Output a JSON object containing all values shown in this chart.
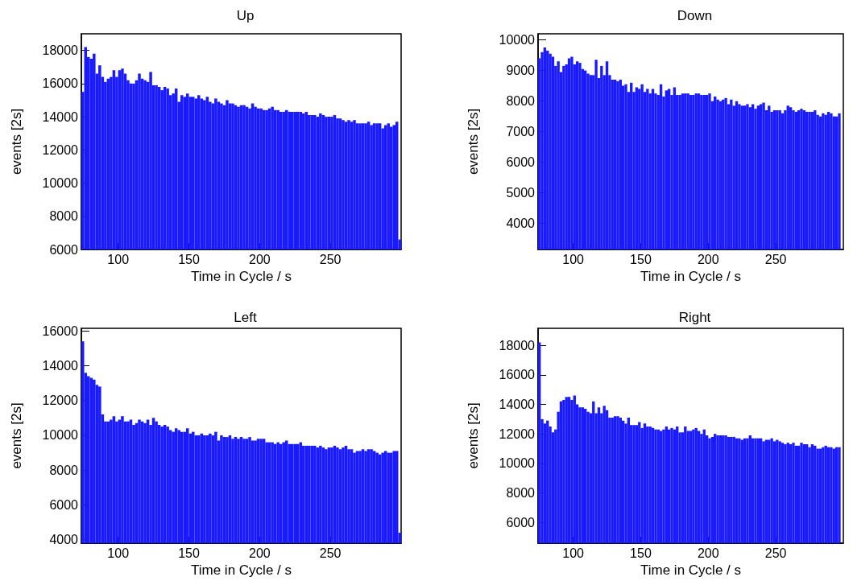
{
  "chart_data": [
    {
      "type": "histogram",
      "title": "Up",
      "xlabel": "Time in Cycle / s",
      "ylabel": "events [2s]",
      "color": "#1a1aff",
      "xlim": [
        74,
        300
      ],
      "xticks": [
        100,
        150,
        200,
        250
      ],
      "ylim": [
        6000,
        19000
      ],
      "yticks": [
        6000,
        8000,
        10000,
        12000,
        14000,
        16000,
        18000
      ],
      "bins": [
        74,
        76,
        78,
        80,
        82,
        84,
        86,
        88,
        90,
        92,
        94,
        96,
        98,
        100,
        102,
        104,
        106,
        108,
        110,
        112,
        114,
        116,
        118,
        120,
        122,
        124,
        126,
        128,
        130,
        132,
        134,
        136,
        138,
        140,
        142,
        144,
        146,
        148,
        150,
        152,
        154,
        156,
        158,
        160,
        162,
        164,
        166,
        168,
        170,
        172,
        174,
        176,
        178,
        180,
        182,
        184,
        186,
        188,
        190,
        192,
        194,
        196,
        198,
        200,
        202,
        204,
        206,
        208,
        210,
        212,
        214,
        216,
        218,
        220,
        222,
        224,
        226,
        228,
        230,
        232,
        234,
        236,
        238,
        240,
        242,
        244,
        246,
        248,
        250,
        252,
        254,
        256,
        258,
        260,
        262,
        264,
        266,
        268,
        270,
        272,
        274,
        276,
        278,
        280,
        282,
        284,
        286,
        288,
        290,
        292,
        294,
        296,
        298,
        300
      ],
      "values": [
        15500,
        18200,
        17600,
        17500,
        17800,
        16600,
        17100,
        16400,
        16100,
        16300,
        16400,
        16800,
        16400,
        16800,
        16900,
        16600,
        16200,
        16000,
        16000,
        16200,
        16600,
        16300,
        16200,
        16100,
        16700,
        15900,
        15900,
        15800,
        15600,
        15800,
        15700,
        15300,
        15400,
        15700,
        14900,
        15300,
        15200,
        15400,
        15200,
        15200,
        15100,
        15300,
        15100,
        15000,
        15200,
        14900,
        14800,
        15100,
        14900,
        14800,
        14700,
        15000,
        14800,
        14800,
        14700,
        14600,
        14700,
        14700,
        14600,
        14500,
        14800,
        14600,
        14500,
        14500,
        14400,
        14400,
        14500,
        14600,
        14400,
        14400,
        14300,
        14300,
        14400,
        14300,
        14300,
        14300,
        14300,
        14300,
        14200,
        14300,
        14100,
        14100,
        14100,
        14000,
        14200,
        14100,
        14000,
        14000,
        14000,
        14100,
        13900,
        13900,
        13800,
        13700,
        13800,
        13700,
        13800,
        13600,
        13600,
        13600,
        13600,
        13700,
        13500,
        13600,
        13600,
        13600,
        13300,
        13500,
        13600,
        13400,
        13500,
        13700,
        6600
      ]
    },
    {
      "type": "histogram",
      "title": "Down",
      "xlabel": "Time in Cycle / s",
      "ylabel": "events [2s]",
      "color": "#1a1aff",
      "xlim": [
        74,
        300
      ],
      "xticks": [
        100,
        150,
        200,
        250
      ],
      "ylim": [
        3150,
        10200
      ],
      "yticks": [
        4000,
        5000,
        6000,
        7000,
        8000,
        9000,
        10000
      ],
      "bins": [
        74,
        76,
        78,
        80,
        82,
        84,
        86,
        88,
        90,
        92,
        94,
        96,
        98,
        100,
        102,
        104,
        106,
        108,
        110,
        112,
        114,
        116,
        118,
        120,
        122,
        124,
        126,
        128,
        130,
        132,
        134,
        136,
        138,
        140,
        142,
        144,
        146,
        148,
        150,
        152,
        154,
        156,
        158,
        160,
        162,
        164,
        166,
        168,
        170,
        172,
        174,
        176,
        178,
        180,
        182,
        184,
        186,
        188,
        190,
        192,
        194,
        196,
        198,
        200,
        202,
        204,
        206,
        208,
        210,
        212,
        214,
        216,
        218,
        220,
        222,
        224,
        226,
        228,
        230,
        232,
        234,
        236,
        238,
        240,
        242,
        244,
        246,
        248,
        250,
        252,
        254,
        256,
        258,
        260,
        262,
        264,
        266,
        268,
        270,
        272,
        274,
        276,
        278,
        280,
        282,
        284,
        286,
        288,
        290,
        292,
        294,
        296,
        298,
        300
      ],
      "values": [
        9400,
        9600,
        9750,
        9650,
        9550,
        9450,
        9150,
        9300,
        8950,
        9150,
        9200,
        9400,
        9450,
        9200,
        9300,
        9250,
        9050,
        9000,
        8900,
        8850,
        8850,
        9350,
        8750,
        9150,
        8850,
        9300,
        8850,
        8700,
        8700,
        8650,
        8700,
        8500,
        8550,
        8300,
        8600,
        8300,
        8450,
        8400,
        8550,
        8300,
        8400,
        8250,
        8400,
        8250,
        8200,
        8550,
        8150,
        8350,
        8400,
        8200,
        8450,
        8200,
        8200,
        8250,
        8250,
        8250,
        8200,
        8200,
        8250,
        8250,
        8200,
        8200,
        8200,
        8250,
        8000,
        8150,
        8050,
        8000,
        8050,
        8100,
        7900,
        8050,
        7850,
        8000,
        7900,
        7850,
        7850,
        7900,
        7800,
        7900,
        7750,
        7850,
        7900,
        7950,
        7700,
        7850,
        7650,
        7700,
        7700,
        7700,
        7600,
        7700,
        7850,
        7800,
        7700,
        7650,
        7700,
        7750,
        7700,
        7650,
        7650,
        7650,
        7700,
        7550,
        7500,
        7600,
        7550,
        7650,
        7600,
        7500,
        7500,
        7600,
        null
      ]
    },
    {
      "type": "histogram",
      "title": "Left",
      "xlabel": "Time in Cycle / s",
      "ylabel": "events [2s]",
      "color": "#1a1aff",
      "xlim": [
        74,
        300
      ],
      "xticks": [
        100,
        150,
        200,
        250
      ],
      "ylim": [
        3800,
        16150
      ],
      "yticks": [
        4000,
        6000,
        8000,
        10000,
        12000,
        14000,
        16000
      ],
      "bins": [
        74,
        76,
        78,
        80,
        82,
        84,
        86,
        88,
        90,
        92,
        94,
        96,
        98,
        100,
        102,
        104,
        106,
        108,
        110,
        112,
        114,
        116,
        118,
        120,
        122,
        124,
        126,
        128,
        130,
        132,
        134,
        136,
        138,
        140,
        142,
        144,
        146,
        148,
        150,
        152,
        154,
        156,
        158,
        160,
        162,
        164,
        166,
        168,
        170,
        172,
        174,
        176,
        178,
        180,
        182,
        184,
        186,
        188,
        190,
        192,
        194,
        196,
        198,
        200,
        202,
        204,
        206,
        208,
        210,
        212,
        214,
        216,
        218,
        220,
        222,
        224,
        226,
        228,
        230,
        232,
        234,
        236,
        238,
        240,
        242,
        244,
        246,
        248,
        250,
        252,
        254,
        256,
        258,
        260,
        262,
        264,
        266,
        268,
        270,
        272,
        274,
        276,
        278,
        280,
        282,
        284,
        286,
        288,
        290,
        292,
        294,
        296,
        298,
        300
      ],
      "values": [
        15400,
        13600,
        13400,
        13300,
        13200,
        12900,
        12800,
        11200,
        10800,
        10800,
        10900,
        11100,
        10800,
        10900,
        11100,
        10800,
        10800,
        10900,
        10600,
        10700,
        10900,
        10800,
        10700,
        10900,
        10600,
        11000,
        10800,
        10600,
        10500,
        10600,
        10500,
        10300,
        10200,
        10400,
        10300,
        10200,
        10200,
        10400,
        10100,
        10200,
        10000,
        10000,
        10100,
        10000,
        10000,
        10100,
        10000,
        10200,
        9700,
        10000,
        9900,
        9900,
        10000,
        9800,
        9900,
        9800,
        9900,
        9800,
        9800,
        9900,
        9700,
        9700,
        9800,
        9800,
        9800,
        9600,
        9600,
        9600,
        9500,
        9600,
        9500,
        9600,
        9700,
        9500,
        9500,
        9500,
        9500,
        9600,
        9400,
        9400,
        9400,
        9400,
        9400,
        9300,
        9400,
        9300,
        9200,
        9300,
        9300,
        9400,
        9300,
        9200,
        9300,
        9400,
        9200,
        9200,
        9000,
        9100,
        9100,
        9200,
        9100,
        9200,
        9200,
        9100,
        9000,
        8900,
        9000,
        9100,
        9000,
        9000,
        9100,
        9100,
        4400
      ]
    },
    {
      "type": "histogram",
      "title": "Right",
      "xlabel": "Time in Cycle / s",
      "ylabel": "events [2s]",
      "color": "#1a1aff",
      "xlim": [
        74,
        300
      ],
      "xticks": [
        100,
        150,
        200,
        250
      ],
      "ylim": [
        4600,
        19150
      ],
      "yticks": [
        6000,
        8000,
        10000,
        12000,
        14000,
        16000,
        18000
      ],
      "bins": [
        74,
        76,
        78,
        80,
        82,
        84,
        86,
        88,
        90,
        92,
        94,
        96,
        98,
        100,
        102,
        104,
        106,
        108,
        110,
        112,
        114,
        116,
        118,
        120,
        122,
        124,
        126,
        128,
        130,
        132,
        134,
        136,
        138,
        140,
        142,
        144,
        146,
        148,
        150,
        152,
        154,
        156,
        158,
        160,
        162,
        164,
        166,
        168,
        170,
        172,
        174,
        176,
        178,
        180,
        182,
        184,
        186,
        188,
        190,
        192,
        194,
        196,
        198,
        200,
        202,
        204,
        206,
        208,
        210,
        212,
        214,
        216,
        218,
        220,
        222,
        224,
        226,
        228,
        230,
        232,
        234,
        236,
        238,
        240,
        242,
        244,
        246,
        248,
        250,
        252,
        254,
        256,
        258,
        260,
        262,
        264,
        266,
        268,
        270,
        272,
        274,
        276,
        278,
        280,
        282,
        284,
        286,
        288,
        290,
        292,
        294,
        296,
        298,
        300
      ],
      "values": [
        18200,
        13000,
        12700,
        12900,
        12500,
        12100,
        12300,
        13500,
        14200,
        14300,
        14500,
        14500,
        14300,
        14600,
        14000,
        13800,
        13800,
        13700,
        13500,
        13400,
        14200,
        13400,
        13800,
        13400,
        13900,
        13600,
        13100,
        13100,
        13200,
        13200,
        13100,
        12900,
        12700,
        13100,
        12600,
        12600,
        12600,
        12800,
        12400,
        12700,
        12500,
        12500,
        12400,
        12300,
        12300,
        12200,
        12300,
        12500,
        12300,
        12400,
        12300,
        12500,
        12100,
        12100,
        12500,
        12200,
        12200,
        12300,
        12400,
        12200,
        12000,
        12300,
        11900,
        11700,
        11800,
        12000,
        11900,
        11900,
        11900,
        11900,
        11800,
        11800,
        11800,
        11700,
        11700,
        11600,
        11700,
        11700,
        11900,
        11700,
        11700,
        11700,
        11700,
        11500,
        11600,
        11600,
        11700,
        11500,
        11600,
        11500,
        11400,
        11300,
        11400,
        11300,
        11400,
        11200,
        11200,
        11400,
        11300,
        11300,
        11100,
        11300,
        11200,
        11000,
        11000,
        11100,
        11200,
        11100,
        11100,
        11000,
        11100,
        11100,
        null
      ]
    }
  ]
}
